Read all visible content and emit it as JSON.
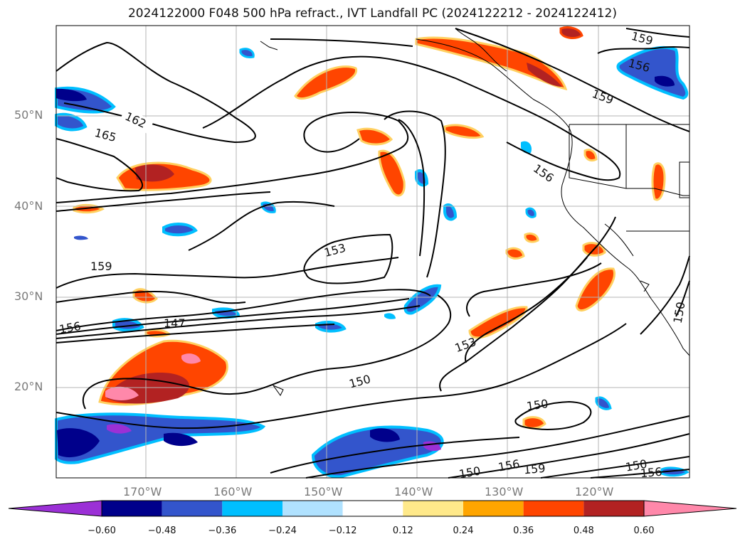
{
  "title": "2024122000 F048 500 hPa refract., IVT Landfall PC (2024122212 - 2024122412)",
  "lat_labels": [
    "50°N",
    "40°N",
    "30°N",
    "20°N"
  ],
  "lon_labels": [
    "170°W",
    "160°W",
    "150°W",
    "140°W",
    "130°W",
    "120°W"
  ],
  "contour_labels": [
    "162",
    "165",
    "159",
    "156",
    "147",
    "153",
    "150",
    "153",
    "150",
    "150",
    "159",
    "156",
    "159",
    "156",
    "156",
    "150",
    "156",
    "159",
    "150"
  ],
  "colorbar": {
    "colors": [
      "#9b30d6",
      "#00008b",
      "#3355cc",
      "#00bfff",
      "#b0e2ff",
      "#ffffff",
      "#ffe98a",
      "#ffa500",
      "#ff4500",
      "#b22222",
      "#ff88aa"
    ],
    "tick_labels": [
      "−0.60",
      "−0.48",
      "−0.36",
      "−0.24",
      "−0.12",
      "0.12",
      "0.24",
      "0.36",
      "0.48",
      "0.60"
    ]
  }
}
